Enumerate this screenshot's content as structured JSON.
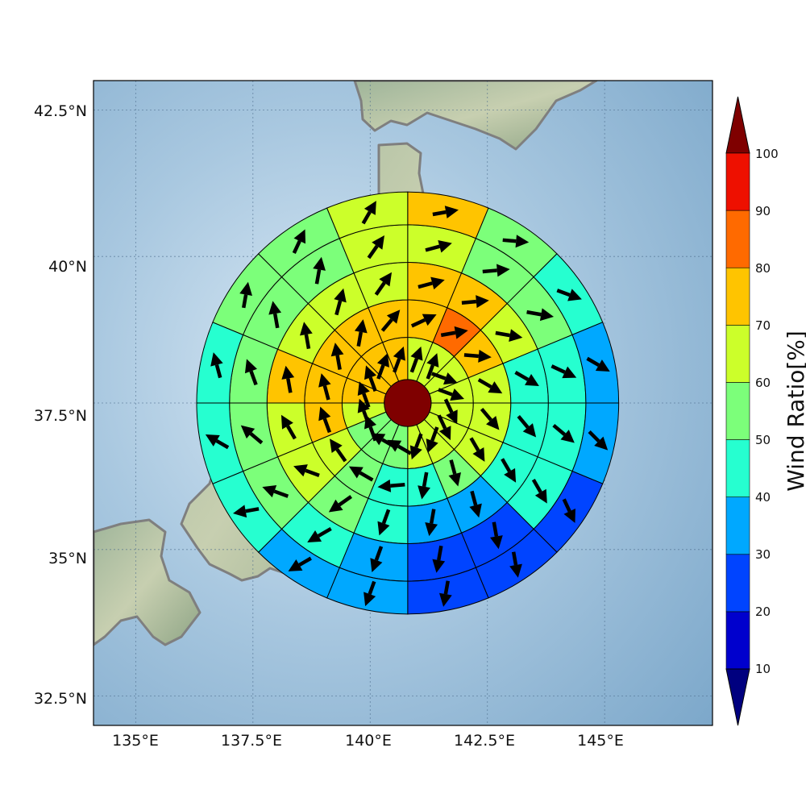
{
  "map": {
    "longitude_ticks": [
      "135°E",
      "137.5°E",
      "140°E",
      "142.5°E",
      "145°E"
    ],
    "latitude_ticks": [
      "42.5°N",
      "40°N",
      "37.5°N",
      "35°N",
      "32.5°N"
    ],
    "lon_values": [
      135,
      137.5,
      140,
      142.5,
      145
    ],
    "lat_values": [
      42.5,
      40,
      37.5,
      35,
      32.5
    ],
    "extent": {
      "lon_min": 134.1,
      "lon_max": 147.3,
      "lat_min": 32.0,
      "lat_max": 43.0
    },
    "center": {
      "lon": 140.8,
      "lat": 37.5
    },
    "grid_lines": true
  },
  "colorbar": {
    "title": "Wind Ratio[%]",
    "tick_labels": [
      "10",
      "20",
      "30",
      "40",
      "50",
      "60",
      "70",
      "80",
      "90",
      "100"
    ],
    "levels": [
      10,
      20,
      30,
      40,
      50,
      60,
      70,
      80,
      90,
      100
    ],
    "colors": [
      "#0000cd",
      "#0044ff",
      "#00a8ff",
      "#26ffd0",
      "#7cff7a",
      "#ccff2a",
      "#ffc400",
      "#ff6a00",
      "#ee1000"
    ],
    "under_color": "#00007f",
    "over_color": "#7f0000"
  },
  "chart_data": {
    "type": "polar-sector-field",
    "center_value_color": "#7f0000",
    "ring_radii_deg": [
      0.5,
      1.4,
      2.2,
      3.0,
      3.8,
      4.5
    ],
    "sectors_per_ring": 16,
    "sector_order": "clockwise from north",
    "rings": [
      {
        "ring": 1,
        "values": [
          65,
          65,
          65,
          65,
          65,
          65,
          65,
          65,
          58,
          58,
          58,
          62,
          72,
          72,
          72,
          72
        ],
        "arrow_bearing_deg": [
          20,
          20,
          110,
          110,
          155,
          155,
          200,
          200,
          300,
          300,
          340,
          340,
          340,
          340,
          20,
          20
        ]
      },
      {
        "ring": 2,
        "values": [
          72,
          83,
          75,
          62,
          62,
          62,
          52,
          45,
          45,
          52,
          62,
          72,
          72,
          72,
          72,
          72
        ],
        "arrow_bearing_deg": [
          65,
          80,
          95,
          120,
          140,
          150,
          165,
          190,
          265,
          300,
          325,
          340,
          345,
          350,
          10,
          40
        ]
      },
      {
        "ring": 3,
        "values": [
          72,
          72,
          62,
          45,
          45,
          45,
          32,
          32,
          45,
          55,
          62,
          65,
          72,
          62,
          62,
          65
        ],
        "arrow_bearing_deg": [
          75,
          85,
          100,
          120,
          140,
          150,
          165,
          190,
          200,
          235,
          290,
          330,
          350,
          350,
          15,
          35
        ]
      },
      {
        "ring": 4,
        "values": [
          65,
          55,
          55,
          45,
          45,
          45,
          25,
          25,
          32,
          45,
          52,
          58,
          55,
          52,
          55,
          65
        ],
        "arrow_bearing_deg": [
          75,
          85,
          100,
          115,
          130,
          150,
          170,
          190,
          200,
          240,
          290,
          310,
          340,
          350,
          10,
          35
        ]
      },
      {
        "ring": 5,
        "values": [
          72,
          55,
          45,
          32,
          32,
          25,
          22,
          22,
          32,
          38,
          45,
          45,
          45,
          55,
          55,
          65
        ],
        "arrow_bearing_deg": [
          80,
          95,
          110,
          120,
          135,
          155,
          170,
          190,
          200,
          240,
          260,
          300,
          345,
          10,
          25,
          30
        ]
      }
    ]
  }
}
